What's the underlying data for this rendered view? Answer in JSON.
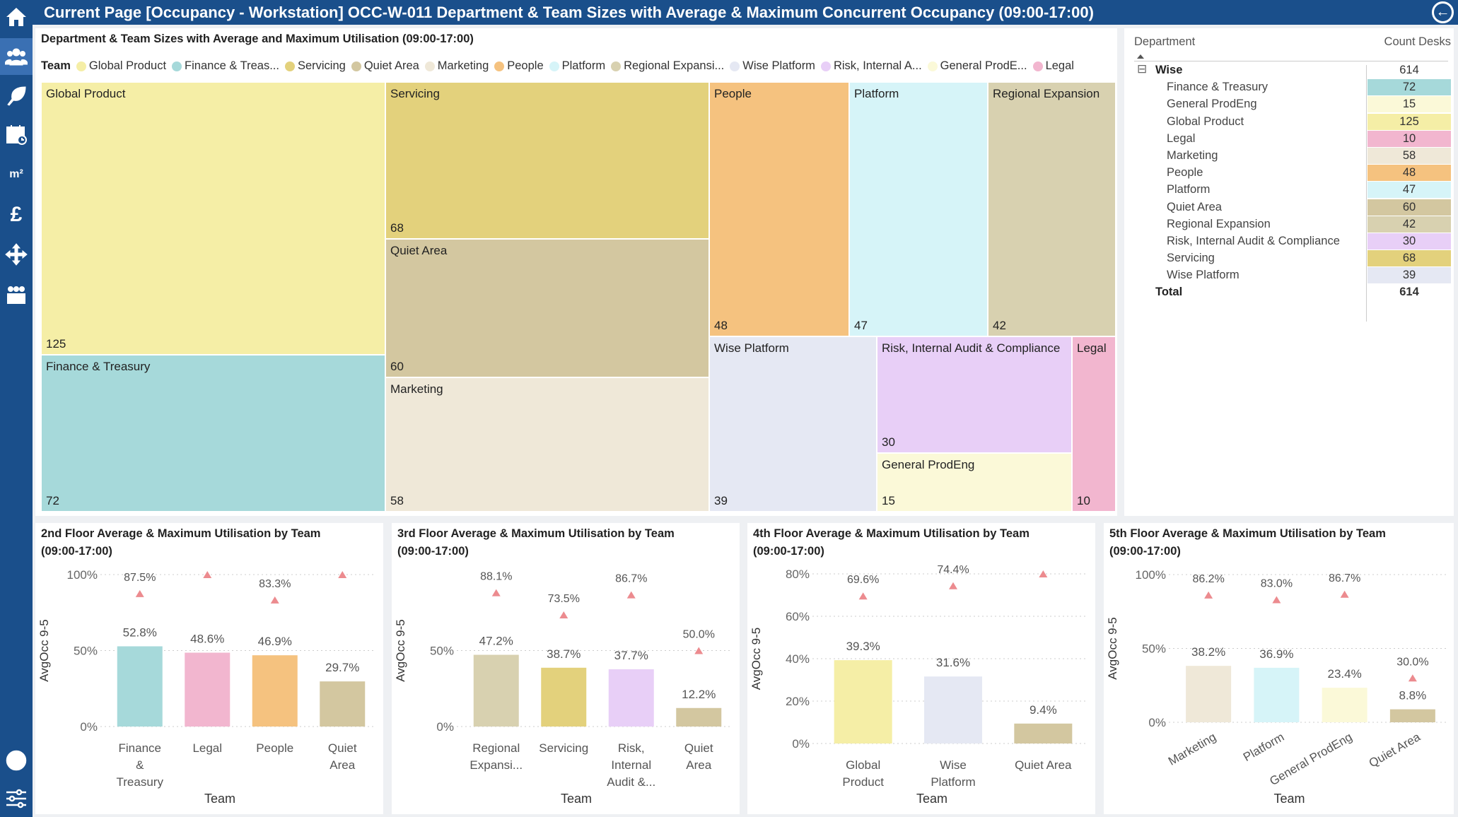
{
  "page": {
    "title": "Current Page [Occupancy - Workstation] OCC-W-011 Department & Team Sizes with Average & Maximum Concurrent Occupancy (09:00-17:00)"
  },
  "sidebar": {
    "items": [
      {
        "name": "home-icon"
      },
      {
        "name": "people-icon"
      },
      {
        "name": "leaf-icon"
      },
      {
        "name": "calendar-icon"
      },
      {
        "name": "area-icon",
        "text": "m²"
      },
      {
        "name": "pound-icon",
        "text": "£"
      },
      {
        "name": "move-icon"
      },
      {
        "name": "team-icon"
      },
      {
        "name": "info-icon"
      },
      {
        "name": "filter-icon"
      }
    ]
  },
  "treemap": {
    "title": "Department & Team Sizes with Average and Maximum Utilisation (09:00-17:00)",
    "legend_title": "Team",
    "legend": [
      {
        "label": "Global Product",
        "color": "#f5eea6"
      },
      {
        "label": "Finance & Treas...",
        "color": "#a6d9da"
      },
      {
        "label": "Servicing",
        "color": "#e3d17c"
      },
      {
        "label": "Quiet Area",
        "color": "#d3c7a0"
      },
      {
        "label": "Marketing",
        "color": "#efe8d8"
      },
      {
        "label": "People",
        "color": "#f5c27f"
      },
      {
        "label": "Platform",
        "color": "#d6f4f8"
      },
      {
        "label": "Regional Expansi...",
        "color": "#d8d1b0"
      },
      {
        "label": "Wise Platform",
        "color": "#e5e8f3"
      },
      {
        "label": "Risk, Internal A...",
        "color": "#e8cff7"
      },
      {
        "label": "General ProdE...",
        "color": "#fbf9d8"
      },
      {
        "label": "Legal",
        "color": "#f2b6cf"
      }
    ],
    "tiles": [
      {
        "name": "Global Product",
        "value": "125",
        "color": "#f5eea6"
      },
      {
        "name": "Finance & Treasury",
        "value": "72",
        "color": "#a6d9da"
      },
      {
        "name": "Servicing",
        "value": "68",
        "color": "#e3d17c"
      },
      {
        "name": "Quiet Area",
        "value": "60",
        "color": "#d3c7a0"
      },
      {
        "name": "Marketing",
        "value": "58",
        "color": "#efe8d8"
      },
      {
        "name": "People",
        "value": "48",
        "color": "#f5c27f"
      },
      {
        "name": "Platform",
        "value": "47",
        "color": "#d6f4f8"
      },
      {
        "name": "Regional Expansion",
        "value": "42",
        "color": "#d8d1b0"
      },
      {
        "name": "Wise Platform",
        "value": "39",
        "color": "#e5e8f3"
      },
      {
        "name": "Risk, Internal Audit & Compliance",
        "value": "30",
        "color": "#e8cff7"
      },
      {
        "name": "General ProdEng",
        "value": "15",
        "color": "#fbf9d8"
      },
      {
        "name": "Legal",
        "value": "10",
        "color": "#f2b6cf"
      }
    ]
  },
  "matrix": {
    "col_department": "Department",
    "col_count": "Count Desks",
    "collapse_symbol": "⊟",
    "group": {
      "label": "Wise",
      "value": "614"
    },
    "rows": [
      {
        "label": "Finance & Treasury",
        "value": "72",
        "color": "#a6d9da"
      },
      {
        "label": "General ProdEng",
        "value": "15",
        "color": "#fbf9d8"
      },
      {
        "label": "Global Product",
        "value": "125",
        "color": "#f5eea6"
      },
      {
        "label": "Legal",
        "value": "10",
        "color": "#f2b6cf"
      },
      {
        "label": "Marketing",
        "value": "58",
        "color": "#efe8d8"
      },
      {
        "label": "People",
        "value": "48",
        "color": "#f5c27f"
      },
      {
        "label": "Platform",
        "value": "47",
        "color": "#d6f4f8"
      },
      {
        "label": "Quiet Area",
        "value": "60",
        "color": "#d3c7a0"
      },
      {
        "label": "Regional Expansion",
        "value": "42",
        "color": "#d8d1b0"
      },
      {
        "label": "Risk, Internal Audit & Compliance",
        "value": "30",
        "color": "#e8cff7"
      },
      {
        "label": "Servicing",
        "value": "68",
        "color": "#e3d17c"
      },
      {
        "label": "Wise Platform",
        "value": "39",
        "color": "#e5e8f3"
      }
    ],
    "total": {
      "label": "Total",
      "value": "614"
    }
  },
  "chart_data": [
    {
      "type": "bar",
      "title_line1": "2nd Floor Average & Maximum Utilisation by Team",
      "title_line2": "(09:00-17:00)",
      "xlabel": "Team",
      "ylabel": "AvgOcc 9-5",
      "ylim": [
        0,
        100
      ],
      "yticks": [
        0,
        50,
        100
      ],
      "ytick_labels": [
        "0%",
        "50%",
        "100%"
      ],
      "categories": [
        [
          "Finance",
          "&",
          "Treasury"
        ],
        [
          "Legal"
        ],
        [
          "People"
        ],
        [
          "Quiet",
          "Area"
        ]
      ],
      "values": [
        52.8,
        48.6,
        46.9,
        29.7
      ],
      "value_labels": [
        "52.8%",
        "48.6%",
        "46.9%",
        "29.7%"
      ],
      "max_values": [
        87.5,
        100,
        83.3,
        100
      ],
      "max_labels": [
        "87.5%",
        "",
        "83.3%",
        ""
      ],
      "colors": [
        "#a6d9da",
        "#f2b6cf",
        "#f5c27f",
        "#d3c7a0"
      ]
    },
    {
      "type": "bar",
      "title_line1": "3rd Floor Average & Maximum Utilisation by Team",
      "title_line2": "(09:00-17:00)",
      "xlabel": "Team",
      "ylabel": "AvgOcc 9-5",
      "ylim": [
        0,
        100
      ],
      "yticks": [
        0,
        50
      ],
      "ytick_labels": [
        "0%",
        "50%"
      ],
      "categories": [
        [
          "Regional",
          "Expansi..."
        ],
        [
          "Servicing"
        ],
        [
          "Risk,",
          "Internal",
          "Audit &..."
        ],
        [
          "Quiet",
          "Area"
        ]
      ],
      "values": [
        47.2,
        38.7,
        37.7,
        12.2
      ],
      "value_labels": [
        "47.2%",
        "38.7%",
        "37.7%",
        "12.2%"
      ],
      "max_values": [
        88.1,
        73.5,
        86.7,
        50.0
      ],
      "max_labels": [
        "88.1%",
        "73.5%",
        "86.7%",
        "50.0%"
      ],
      "colors": [
        "#d8d1b0",
        "#e3d17c",
        "#e8cff7",
        "#d3c7a0"
      ]
    },
    {
      "type": "bar",
      "title_line1": "4th Floor Average & Maximum Utilisation by Team",
      "title_line2": "(09:00-17:00)",
      "xlabel": "Team",
      "ylabel": "AvgOcc 9-5",
      "ylim": [
        0,
        80
      ],
      "yticks": [
        0,
        20,
        40,
        60,
        80
      ],
      "ytick_labels": [
        "0%",
        "20%",
        "40%",
        "60%",
        "80%"
      ],
      "categories": [
        [
          "Global",
          "Product"
        ],
        [
          "Wise",
          "Platform"
        ],
        [
          "Quiet Area"
        ]
      ],
      "values": [
        39.3,
        31.6,
        9.4
      ],
      "value_labels": [
        "39.3%",
        "31.6%",
        "9.4%"
      ],
      "max_values": [
        69.6,
        74.4,
        80.0
      ],
      "max_labels": [
        "69.6%",
        "74.4%",
        ""
      ],
      "colors": [
        "#f5eea6",
        "#e5e8f3",
        "#d3c7a0"
      ]
    },
    {
      "type": "bar",
      "title_line1": "5th Floor Average & Maximum Utilisation by Team",
      "title_line2": "(09:00-17:00)",
      "xlabel": "Team",
      "ylabel": "AvgOcc 9-5",
      "ylim": [
        0,
        100
      ],
      "yticks": [
        0,
        50,
        100
      ],
      "ytick_labels": [
        "0%",
        "50%",
        "100%"
      ],
      "categories": [
        [
          "Marketing"
        ],
        [
          "Platform"
        ],
        [
          "General ProdEng"
        ],
        [
          "Quiet Area"
        ]
      ],
      "rotate_labels": true,
      "values": [
        38.2,
        36.9,
        23.4,
        8.8
      ],
      "value_labels": [
        "38.2%",
        "36.9%",
        "23.4%",
        "8.8%"
      ],
      "max_values": [
        86.2,
        83.0,
        86.7,
        30.0
      ],
      "max_labels": [
        "86.2%",
        "83.0%",
        "86.7%",
        "30.0%"
      ],
      "colors": [
        "#efe8d8",
        "#d6f4f8",
        "#fbf9d8",
        "#d3c7a0"
      ]
    }
  ]
}
